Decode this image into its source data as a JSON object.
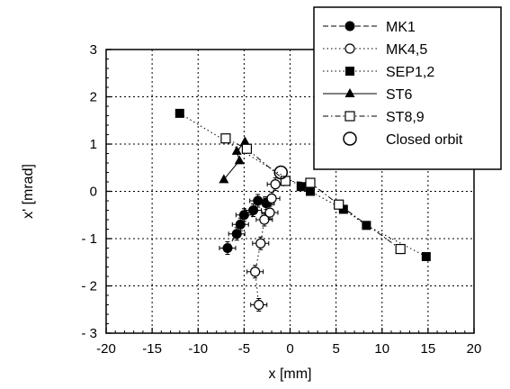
{
  "chart_data": {
    "type": "scatter",
    "xlabel": "x [mm]",
    "ylabel": "x' [mrad]",
    "xlim": [
      -20,
      20
    ],
    "ylim": [
      -3,
      3
    ],
    "xticks": [
      -20,
      -15,
      -10,
      -5,
      0,
      5,
      10,
      15,
      20
    ],
    "yticks": [
      3,
      2,
      1,
      0,
      -1,
      -2,
      -3
    ],
    "xtick_labels": [
      "-20",
      "-15",
      "-10",
      "-5",
      "0",
      "5",
      "10",
      "15",
      "20"
    ],
    "ytick_labels": [
      "3",
      "2",
      "1",
      "0",
      "- 1",
      "- 2",
      "- 3"
    ],
    "grid": true,
    "legend_position": "top-right",
    "series": [
      {
        "name": "MK1",
        "marker": "filled-circle",
        "line": "dashed",
        "points": [
          [
            -6.8,
            -1.2
          ],
          [
            -5.8,
            -0.9
          ],
          [
            -5.4,
            -0.7
          ],
          [
            -5.0,
            -0.5
          ],
          [
            -4.0,
            -0.4
          ],
          [
            -3.5,
            -0.2
          ],
          [
            -2.6,
            -0.25
          ]
        ],
        "errorbars": true
      },
      {
        "name": "MK4,5",
        "marker": "open-circle",
        "line": "dotted",
        "points": [
          [
            -3.4,
            -2.4
          ],
          [
            -3.8,
            -1.7
          ],
          [
            -3.2,
            -1.1
          ],
          [
            -2.8,
            -0.6
          ],
          [
            -2.2,
            -0.45
          ],
          [
            -2.0,
            -0.15
          ],
          [
            -1.6,
            0.15
          ]
        ],
        "errorbars": true
      },
      {
        "name": "SEP1,2",
        "marker": "filled-square",
        "line": "dotted",
        "points": [
          [
            -12.0,
            1.65
          ],
          [
            1.2,
            0.1
          ],
          [
            2.2,
            0.0
          ],
          [
            5.8,
            -0.38
          ],
          [
            8.3,
            -0.72
          ],
          [
            14.8,
            -1.38
          ]
        ],
        "errorbars": false
      },
      {
        "name": "ST6",
        "marker": "filled-triangle",
        "line": "solid",
        "points": [
          [
            -7.2,
            0.25
          ],
          [
            -5.5,
            0.65
          ],
          [
            -5.8,
            0.85
          ],
          [
            -4.9,
            1.05
          ]
        ],
        "errorbars": false
      },
      {
        "name": "ST8,9",
        "marker": "open-square",
        "line": "dash-dot",
        "points": [
          [
            -7.0,
            1.12
          ],
          [
            -4.7,
            0.9
          ],
          [
            -0.5,
            0.22
          ],
          [
            2.2,
            0.18
          ],
          [
            5.3,
            -0.28
          ],
          [
            12.0,
            -1.22
          ]
        ],
        "errorbars": false
      }
    ],
    "closed_orbit": {
      "name": "Closed orbit",
      "marker": "large-open-circle",
      "point": [
        -1.0,
        0.4
      ]
    }
  }
}
